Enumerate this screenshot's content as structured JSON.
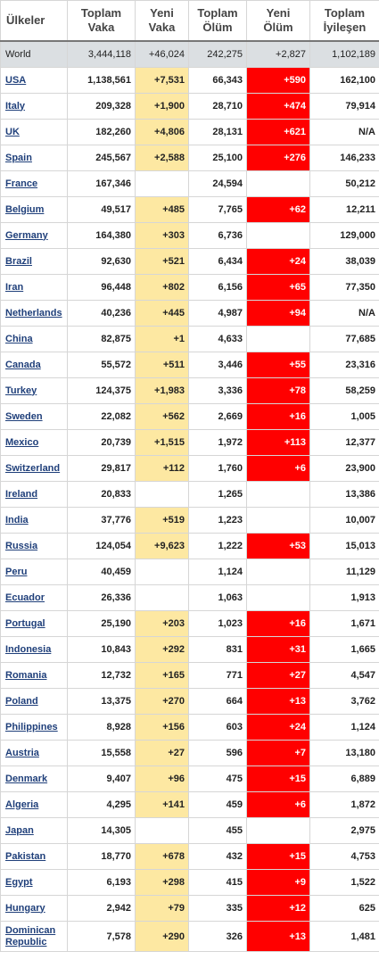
{
  "headers": [
    [
      "Ülkeler"
    ],
    [
      "Toplam",
      "Vaka"
    ],
    [
      "Yeni",
      "Vaka"
    ],
    [
      "Toplam",
      "Ölüm"
    ],
    [
      "Yeni",
      "Ölüm"
    ],
    [
      "Toplam",
      "İyileşen"
    ]
  ],
  "colors": {
    "new_cases_bg": "#fde8a2",
    "new_deaths_bg": "#ff0000",
    "world_row_bg": "#dbdfe2",
    "link": "#1f3f7a"
  },
  "rows": [
    [
      "World",
      "3,444,118",
      "+46,024",
      "242,275",
      "+2,827",
      "1,102,189"
    ],
    [
      "USA",
      "1,138,561",
      "+7,531",
      "66,343",
      "+590",
      "162,100"
    ],
    [
      "Italy",
      "209,328",
      "+1,900",
      "28,710",
      "+474",
      "79,914"
    ],
    [
      "UK",
      "182,260",
      "+4,806",
      "28,131",
      "+621",
      "N/A"
    ],
    [
      "Spain",
      "245,567",
      "+2,588",
      "25,100",
      "+276",
      "146,233"
    ],
    [
      "France",
      "167,346",
      "",
      "24,594",
      "",
      "50,212"
    ],
    [
      "Belgium",
      "49,517",
      "+485",
      "7,765",
      "+62",
      "12,211"
    ],
    [
      "Germany",
      "164,380",
      "+303",
      "6,736",
      "",
      "129,000"
    ],
    [
      "Brazil",
      "92,630",
      "+521",
      "6,434",
      "+24",
      "38,039"
    ],
    [
      "Iran",
      "96,448",
      "+802",
      "6,156",
      "+65",
      "77,350"
    ],
    [
      "Netherlands",
      "40,236",
      "+445",
      "4,987",
      "+94",
      "N/A"
    ],
    [
      "China",
      "82,875",
      "+1",
      "4,633",
      "",
      "77,685"
    ],
    [
      "Canada",
      "55,572",
      "+511",
      "3,446",
      "+55",
      "23,316"
    ],
    [
      "Turkey",
      "124,375",
      "+1,983",
      "3,336",
      "+78",
      "58,259"
    ],
    [
      "Sweden",
      "22,082",
      "+562",
      "2,669",
      "+16",
      "1,005"
    ],
    [
      "Mexico",
      "20,739",
      "+1,515",
      "1,972",
      "+113",
      "12,377"
    ],
    [
      "Switzerland",
      "29,817",
      "+112",
      "1,760",
      "+6",
      "23,900"
    ],
    [
      "Ireland",
      "20,833",
      "",
      "1,265",
      "",
      "13,386"
    ],
    [
      "India",
      "37,776",
      "+519",
      "1,223",
      "",
      "10,007"
    ],
    [
      "Russia",
      "124,054",
      "+9,623",
      "1,222",
      "+53",
      "15,013"
    ],
    [
      "Peru",
      "40,459",
      "",
      "1,124",
      "",
      "11,129"
    ],
    [
      "Ecuador",
      "26,336",
      "",
      "1,063",
      "",
      "1,913"
    ],
    [
      "Portugal",
      "25,190",
      "+203",
      "1,023",
      "+16",
      "1,671"
    ],
    [
      "Indonesia",
      "10,843",
      "+292",
      "831",
      "+31",
      "1,665"
    ],
    [
      "Romania",
      "12,732",
      "+165",
      "771",
      "+27",
      "4,547"
    ],
    [
      "Poland",
      "13,375",
      "+270",
      "664",
      "+13",
      "3,762"
    ],
    [
      "Philippines",
      "8,928",
      "+156",
      "603",
      "+24",
      "1,124"
    ],
    [
      "Austria",
      "15,558",
      "+27",
      "596",
      "+7",
      "13,180"
    ],
    [
      "Denmark",
      "9,407",
      "+96",
      "475",
      "+15",
      "6,889"
    ],
    [
      "Algeria",
      "4,295",
      "+141",
      "459",
      "+6",
      "1,872"
    ],
    [
      "Japan",
      "14,305",
      "",
      "455",
      "",
      "2,975"
    ],
    [
      "Pakistan",
      "18,770",
      "+678",
      "432",
      "+15",
      "4,753"
    ],
    [
      "Egypt",
      "6,193",
      "+298",
      "415",
      "+9",
      "1,522"
    ],
    [
      "Hungary",
      "2,942",
      "+79",
      "335",
      "+12",
      "625"
    ],
    [
      "Dominican Republic",
      "7,578",
      "+290",
      "326",
      "+13",
      "1,481"
    ]
  ]
}
